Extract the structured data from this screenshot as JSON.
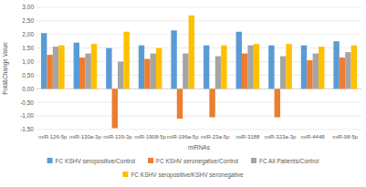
{
  "chart_data": {
    "type": "bar",
    "x_label": "miRNAs",
    "y_label": "Fold&Change Value",
    "categories": [
      "miR-126-5p",
      "miR-130a-3p",
      "miR-139-3p",
      "miR-1908-5p",
      "miR-196a-5p",
      "miR-23a-5p",
      "miR-3188",
      "miR-323a-3p",
      "miR-4448",
      "miR-98-5p"
    ],
    "series": [
      {
        "name": "FC KSHV seropositive/Control",
        "color": "#5b9bd5",
        "values": [
          2.05,
          1.7,
          1.5,
          1.6,
          2.15,
          1.6,
          2.1,
          1.6,
          1.6,
          1.75
        ]
      },
      {
        "name": "FC KSHV  seronegative/Control",
        "color": "#ed7d31",
        "values": [
          1.25,
          1.15,
          -1.45,
          1.1,
          -1.1,
          -1.05,
          1.3,
          -1.05,
          1.05,
          1.15
        ]
      },
      {
        "name": "FC All Patients/Control",
        "color": "#a5a5a5",
        "values": [
          1.55,
          1.3,
          1.0,
          1.3,
          1.3,
          1.2,
          1.6,
          1.2,
          1.3,
          1.35
        ]
      },
      {
        "name": "FC KSHV seropositive/KSHV seronegative",
        "color": "#ffc000",
        "values": [
          1.6,
          1.65,
          2.1,
          1.5,
          2.7,
          1.6,
          1.65,
          1.65,
          1.55,
          1.6
        ]
      }
    ],
    "ylim": [
      -1.5,
      3.0
    ],
    "yticks": [
      {
        "value": -1.5,
        "label": "-1,50"
      },
      {
        "value": -1.0,
        "label": "-1,00"
      },
      {
        "value": -0.5,
        "label": "-0,50"
      },
      {
        "value": 0,
        "label": "0,00"
      },
      {
        "value": 0.5,
        "label": "0,50"
      },
      {
        "value": 1.0,
        "label": "1,00"
      },
      {
        "value": 1.5,
        "label": "1,50"
      },
      {
        "value": 2.0,
        "label": "2,00"
      },
      {
        "value": 2.5,
        "label": "2,50"
      },
      {
        "value": 3.0,
        "label": "3,00"
      }
    ],
    "grid": true,
    "legend": "bottom"
  }
}
